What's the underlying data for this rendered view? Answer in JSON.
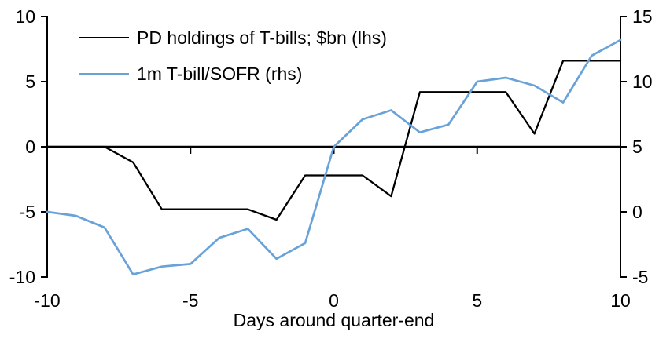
{
  "chart_data": {
    "type": "line",
    "title": "",
    "xlabel": "Days around quarter-end",
    "ylabel_left": "",
    "ylabel_right": "",
    "grid": false,
    "legend_position": "top-left",
    "zero_line": true,
    "x": [
      -10,
      -9,
      -8,
      -7,
      -6,
      -5,
      -4,
      -3,
      -2,
      -1,
      0,
      1,
      2,
      3,
      4,
      5,
      6,
      7,
      8,
      9,
      10
    ],
    "x_ticks": [
      -10,
      -5,
      0,
      5,
      10
    ],
    "left_axis": {
      "range": [
        -10,
        10
      ],
      "ticks": [
        10,
        5,
        0,
        -5,
        -10
      ]
    },
    "right_axis": {
      "range": [
        -5,
        15
      ],
      "ticks": [
        15,
        10,
        5,
        0,
        -5
      ]
    },
    "series": [
      {
        "name": "PD holdings of T-bills; $bn (lhs)",
        "axis": "left",
        "color": "#000000",
        "values": [
          0,
          0,
          0,
          -1.2,
          -4.8,
          -4.8,
          -4.8,
          -4.8,
          -5.6,
          -2.2,
          -2.2,
          -2.2,
          -3.8,
          4.2,
          4.2,
          4.2,
          4.2,
          1.0,
          6.6,
          6.6,
          6.6
        ]
      },
      {
        "name": "1m T-bill/SOFR (rhs)",
        "axis": "right",
        "color": "#69a2d8",
        "values": [
          0,
          -0.3,
          -1.2,
          -4.8,
          -4.2,
          -4.0,
          -2.0,
          -1.3,
          -3.6,
          -2.4,
          5.0,
          7.1,
          7.8,
          6.1,
          6.7,
          10.0,
          10.3,
          9.7,
          8.4,
          12.0,
          13.2
        ]
      }
    ]
  }
}
